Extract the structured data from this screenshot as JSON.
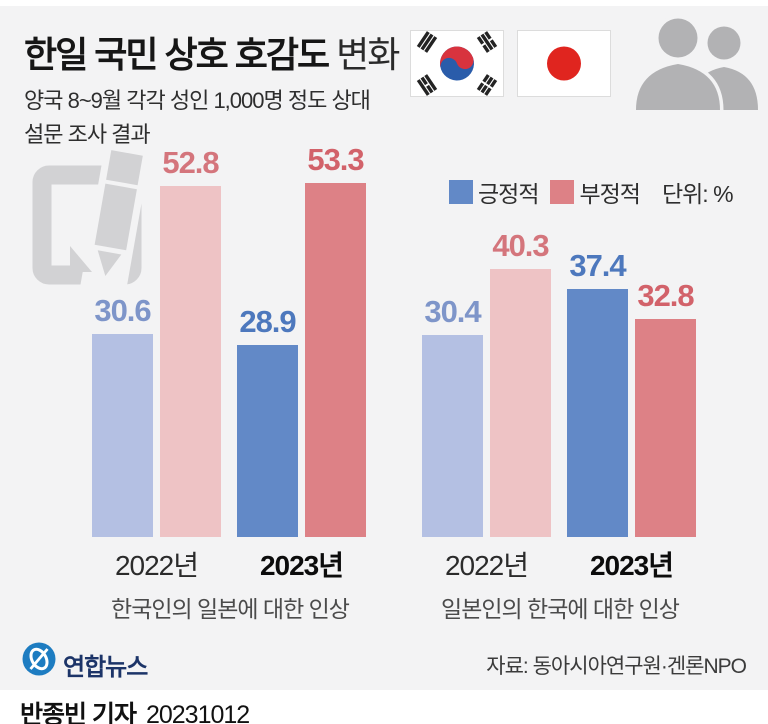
{
  "header": {
    "title_main": "한일 국민 상호 호감도",
    "title_suffix": "변화",
    "subtitle_lines": [
      "양국 8~9월 각각 성인 1,000명 정도 상대",
      "설문 조사 결과"
    ]
  },
  "legend": {
    "items": [
      {
        "label": "긍정적",
        "color": "#6289c7"
      },
      {
        "label": "부정적",
        "color": "#dd8186"
      }
    ],
    "unit_label": "단위: %"
  },
  "chart_data": [
    {
      "type": "bar",
      "title": "한국인의 일본에 대한 인상",
      "categories": [
        "2022년",
        "2023년"
      ],
      "series": [
        {
          "name": "긍정적",
          "values": [
            30.6,
            28.9
          ]
        },
        {
          "name": "부정적",
          "values": [
            52.8,
            53.3
          ]
        }
      ],
      "unit": "%",
      "ylim": [
        0,
        60
      ],
      "grid": false,
      "legend_position": "top-right"
    },
    {
      "type": "bar",
      "title": "일본인의 한국에 대한 인상",
      "categories": [
        "2022년",
        "2023년"
      ],
      "series": [
        {
          "name": "긍정적",
          "values": [
            30.4,
            37.4
          ]
        },
        {
          "name": "부정적",
          "values": [
            40.3,
            32.8
          ]
        }
      ],
      "unit": "%",
      "ylim": [
        0,
        60
      ],
      "grid": false,
      "legend_position": "top-right"
    }
  ],
  "colors": {
    "background": "#f3f3f4",
    "pos_light": "#b4c0e3",
    "pos_strong": "#6289c7",
    "neg_light": "#eec3c5",
    "neg_strong": "#dd8186",
    "pos_light_label": "#7e95c9",
    "pos_strong_label": "#4d78bd",
    "neg_light_label": "#d4757c",
    "neg_strong_label": "#d2626a",
    "watermark": "#d2d2d4",
    "silhouette": "#b2b2b4",
    "korea_red": "#d8333e",
    "korea_blue": "#2a5caa",
    "japan_red": "#e0251f",
    "yonhap_blue": "#1d7cc1",
    "yonhap_navy": "#1c3468"
  },
  "icons": {
    "korea_flag": "korea-flag-icon",
    "japan_flag": "japan-flag-icon",
    "people": "people-silhouette-icon",
    "watermark": "pencil-document-watermark-icon",
    "yonhap": "yonhap-logo-icon"
  },
  "footer": {
    "logo_text": "연합뉴스",
    "source": "자료: 동아시아연구원·겐론NPO",
    "byline_name": "반종빈 기자",
    "byline_date": "20231012"
  }
}
